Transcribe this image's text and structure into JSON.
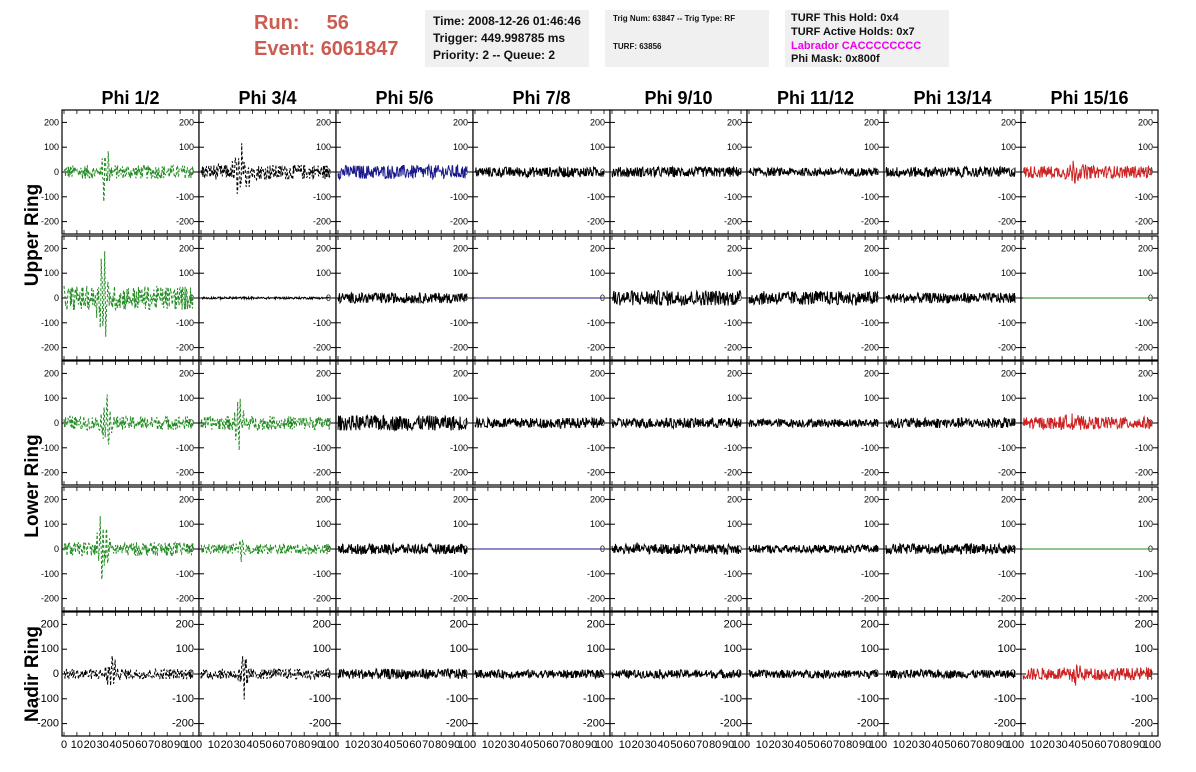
{
  "header": {
    "run_label": "Run:",
    "run_value": "56",
    "event_label": "Event:",
    "event_value": "6061847"
  },
  "info_time": {
    "line1": "Time: 2008-12-26 01:46:46",
    "line2": "Trigger: 449.998785 ms",
    "line3": "Priority: 2 -- Queue: 2"
  },
  "info_trig": {
    "line1": "Trig Num: 63847 -- Trig Type: RF",
    "line2": "TURF: 63856"
  },
  "info_turf": {
    "line1": "TURF This Hold: 0x4",
    "line2": "TURF Active Holds: 0x7",
    "line3": "Labrador CACCCCCCCC",
    "line4": "Phi Mask: 0x800f",
    "labrador_color": "#ee00ee"
  },
  "chart_data": {
    "type": "line",
    "columns": [
      "Phi 1/2",
      "Phi 3/4",
      "Phi 5/6",
      "Phi 7/8",
      "Phi 9/10",
      "Phi 11/12",
      "Phi 13/14",
      "Phi 15/16"
    ],
    "rings": [
      "Upper Ring",
      "Lower Ring",
      "Nadir Ring"
    ],
    "ylim": [
      -250,
      250
    ],
    "yticks": [
      -200,
      -100,
      0,
      100,
      200
    ],
    "xlim": [
      0,
      100
    ],
    "xticks": [
      0,
      10,
      20,
      30,
      40,
      50,
      60,
      70,
      80,
      90,
      100
    ],
    "xtick_labels_first": [
      "0",
      "10",
      "20",
      "30",
      "40",
      "50",
      "60",
      "70",
      "80",
      "90",
      "100"
    ],
    "xtick_labels_other": [
      "10",
      "20",
      "30",
      "40",
      "50",
      "60",
      "70",
      "80",
      "90",
      "100"
    ],
    "colors": {
      "green": "#228b22",
      "black": "#000000",
      "blue": "#1a1a8c",
      "red": "#cc2222"
    },
    "panels": [
      [
        {
          "color": "green",
          "dash": true,
          "amp": 20,
          "burst": 120,
          "center": 32,
          "width": 4
        },
        {
          "color": "black",
          "dash": true,
          "amp": 22,
          "burst": 120,
          "center": 32,
          "width": 6
        },
        {
          "color": "blue",
          "dash": false,
          "amp": 20,
          "burst": 0,
          "center": 50,
          "width": 10
        },
        {
          "color": "black",
          "dash": false,
          "amp": 15,
          "burst": 0,
          "center": 50,
          "width": 10
        },
        {
          "color": "black",
          "dash": false,
          "amp": 15,
          "burst": 0,
          "center": 50,
          "width": 10
        },
        {
          "color": "black",
          "dash": false,
          "amp": 12,
          "burst": 0,
          "center": 50,
          "width": 10
        },
        {
          "color": "black",
          "dash": false,
          "amp": 15,
          "burst": 0,
          "center": 50,
          "width": 10
        },
        {
          "color": "red",
          "dash": false,
          "amp": 18,
          "burst": 30,
          "center": 40,
          "width": 8
        }
      ],
      [
        {
          "color": "green",
          "dash": true,
          "amp": 35,
          "burst": 220,
          "center": 30,
          "width": 4
        },
        {
          "color": "black",
          "dash": false,
          "amp": 3,
          "burst": 0,
          "center": 50,
          "width": 10
        },
        {
          "color": "black",
          "dash": false,
          "amp": 15,
          "burst": 0,
          "center": 50,
          "width": 10
        },
        {
          "color": "blue",
          "dash": false,
          "amp": 0,
          "burst": 0,
          "center": 50,
          "width": 10
        },
        {
          "color": "black",
          "dash": false,
          "amp": 22,
          "burst": 0,
          "center": 50,
          "width": 10
        },
        {
          "color": "black",
          "dash": false,
          "amp": 20,
          "burst": 0,
          "center": 50,
          "width": 10
        },
        {
          "color": "black",
          "dash": false,
          "amp": 15,
          "burst": 0,
          "center": 50,
          "width": 10
        },
        {
          "color": "green",
          "dash": false,
          "amp": 0,
          "burst": 0,
          "center": 50,
          "width": 10
        }
      ],
      [
        {
          "color": "green",
          "dash": true,
          "amp": 20,
          "burst": 130,
          "center": 33,
          "width": 4
        },
        {
          "color": "green",
          "dash": true,
          "amp": 20,
          "burst": 120,
          "center": 30,
          "width": 4
        },
        {
          "color": "black",
          "dash": false,
          "amp": 22,
          "burst": 0,
          "center": 50,
          "width": 10
        },
        {
          "color": "black",
          "dash": false,
          "amp": 15,
          "burst": 0,
          "center": 50,
          "width": 10
        },
        {
          "color": "black",
          "dash": false,
          "amp": 15,
          "burst": 0,
          "center": 50,
          "width": 10
        },
        {
          "color": "black",
          "dash": false,
          "amp": 12,
          "burst": 0,
          "center": 50,
          "width": 10
        },
        {
          "color": "black",
          "dash": false,
          "amp": 15,
          "burst": 0,
          "center": 50,
          "width": 10
        },
        {
          "color": "red",
          "dash": false,
          "amp": 18,
          "burst": 30,
          "center": 40,
          "width": 8
        }
      ],
      [
        {
          "color": "green",
          "dash": true,
          "amp": 20,
          "burst": 200,
          "center": 30,
          "width": 4
        },
        {
          "color": "green",
          "dash": true,
          "amp": 15,
          "burst": 60,
          "center": 30,
          "width": 4
        },
        {
          "color": "black",
          "dash": false,
          "amp": 15,
          "burst": 0,
          "center": 50,
          "width": 10
        },
        {
          "color": "blue",
          "dash": false,
          "amp": 0,
          "burst": 0,
          "center": 50,
          "width": 10
        },
        {
          "color": "black",
          "dash": false,
          "amp": 15,
          "burst": 0,
          "center": 50,
          "width": 10
        },
        {
          "color": "black",
          "dash": false,
          "amp": 12,
          "burst": 0,
          "center": 50,
          "width": 10
        },
        {
          "color": "black",
          "dash": false,
          "amp": 15,
          "burst": 0,
          "center": 50,
          "width": 10
        },
        {
          "color": "green",
          "dash": false,
          "amp": 0,
          "burst": 0,
          "center": 50,
          "width": 10
        }
      ],
      [
        {
          "color": "black",
          "dash": true,
          "amp": 15,
          "burst": 120,
          "center": 37,
          "width": 4
        },
        {
          "color": "black",
          "dash": true,
          "amp": 15,
          "burst": 120,
          "center": 33,
          "width": 4
        },
        {
          "color": "black",
          "dash": false,
          "amp": 15,
          "burst": 0,
          "center": 50,
          "width": 10
        },
        {
          "color": "black",
          "dash": false,
          "amp": 12,
          "burst": 0,
          "center": 50,
          "width": 10
        },
        {
          "color": "black",
          "dash": false,
          "amp": 12,
          "burst": 0,
          "center": 50,
          "width": 10
        },
        {
          "color": "black",
          "dash": false,
          "amp": 12,
          "burst": 0,
          "center": 50,
          "width": 10
        },
        {
          "color": "black",
          "dash": false,
          "amp": 12,
          "burst": 0,
          "center": 50,
          "width": 10
        },
        {
          "color": "red",
          "dash": false,
          "amp": 18,
          "burst": 45,
          "center": 40,
          "width": 5
        }
      ]
    ]
  }
}
